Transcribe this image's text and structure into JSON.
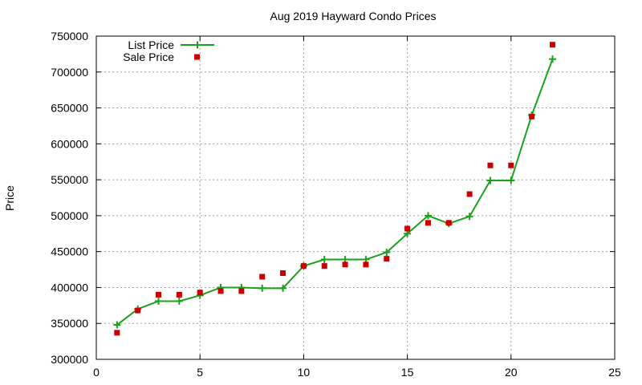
{
  "chart_data": {
    "type": "line",
    "title": "Aug 2019 Hayward Condo Prices",
    "xlabel": "",
    "ylabel": "Price",
    "xlim": [
      0,
      25
    ],
    "ylim": [
      300000,
      750000
    ],
    "x_ticks": [
      "0",
      "5",
      "10",
      "15",
      "20",
      "25"
    ],
    "y_ticks": [
      "300000",
      "350000",
      "400000",
      "450000",
      "500000",
      "550000",
      "600000",
      "650000",
      "700000",
      "750000"
    ],
    "grid": true,
    "legend_position": "top-left",
    "series": [
      {
        "name": "List Price",
        "style": "lines-points",
        "marker": "plus",
        "color": "#1aa31a",
        "x": [
          1,
          2,
          3,
          4,
          5,
          6,
          7,
          8,
          9,
          10,
          11,
          12,
          13,
          14,
          15,
          16,
          17,
          18,
          19,
          20,
          21,
          22
        ],
        "y": [
          348000,
          370000,
          381000,
          381000,
          389000,
          400000,
          400000,
          399000,
          399000,
          430000,
          439000,
          439000,
          439000,
          449000,
          475000,
          500000,
          489000,
          499000,
          549000,
          549000,
          640000,
          718000
        ]
      },
      {
        "name": "Sale Price",
        "style": "points",
        "marker": "square",
        "color": "#cc0000",
        "x": [
          1,
          2,
          3,
          4,
          5,
          6,
          7,
          8,
          9,
          10,
          11,
          12,
          13,
          14,
          15,
          16,
          17,
          18,
          19,
          20,
          21,
          22
        ],
        "y": [
          337000,
          368000,
          390000,
          390000,
          393000,
          395000,
          395000,
          415000,
          420000,
          430000,
          430000,
          432000,
          432000,
          440000,
          482000,
          490000,
          490000,
          530000,
          570000,
          570000,
          638000,
          738000
        ]
      }
    ]
  }
}
